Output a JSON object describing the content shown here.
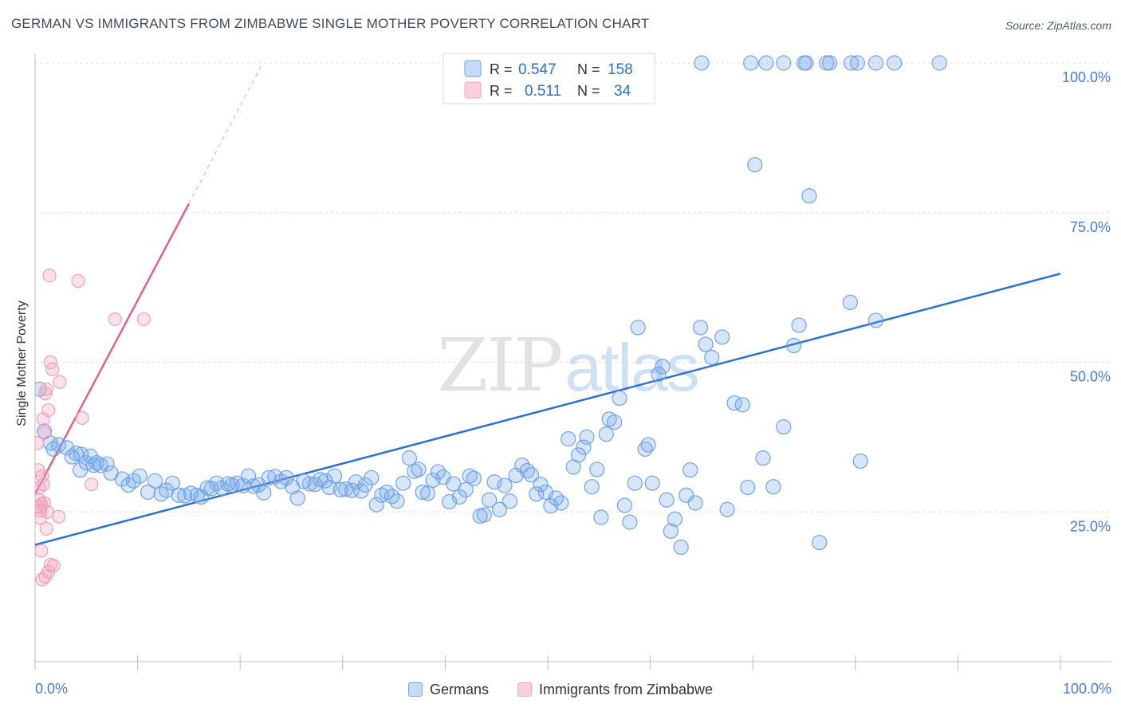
{
  "chart_data": {
    "type": "scatter",
    "title": "GERMAN VS IMMIGRANTS FROM ZIMBABWE SINGLE MOTHER POVERTY CORRELATION CHART",
    "source": "Source: ZipAtlas.com",
    "watermark": "ZIPatlas",
    "ylabel": "Single Mother Poverty",
    "xlabel": "",
    "xlim": [
      0,
      100
    ],
    "ylim": [
      0,
      105
    ],
    "x_tick_labels": [
      "0.0%",
      "100.0%"
    ],
    "y_ticks": [
      25,
      50,
      75,
      100
    ],
    "y_tick_labels": [
      "25.0%",
      "50.0%",
      "75.0%",
      "100.0%"
    ],
    "grid": true,
    "legend": {
      "position": "top-center",
      "rows": [
        {
          "r_label": "R =",
          "r_value": "0.547",
          "n_label": "N =",
          "n_value": "158"
        },
        {
          "r_label": "R =",
          "r_value": "0.511",
          "n_label": "N =",
          "n_value": "34"
        }
      ]
    },
    "series": [
      {
        "name": "Germans",
        "color": "#6fa3e8",
        "line_color": "#2d72d2",
        "trendline": {
          "x": [
            0,
            100
          ],
          "y": [
            19.5,
            64.8
          ]
        },
        "trendline_dashed_extension": false,
        "points": [
          [
            0.4,
            45.5
          ],
          [
            0.9,
            38.5
          ],
          [
            1.5,
            36.5
          ],
          [
            1.8,
            35.5
          ],
          [
            2.3,
            36.2
          ],
          [
            3.1,
            35.7
          ],
          [
            3.6,
            34.2
          ],
          [
            4.0,
            34.8
          ],
          [
            4.5,
            34.6
          ],
          [
            5.0,
            33.2
          ],
          [
            5.4,
            34.3
          ],
          [
            5.7,
            32.8
          ],
          [
            6.0,
            33.2
          ],
          [
            6.4,
            32.8
          ],
          [
            7.0,
            33.0
          ],
          [
            4.4,
            32.0
          ],
          [
            7.4,
            31.5
          ],
          [
            8.5,
            30.5
          ],
          [
            9.1,
            29.5
          ],
          [
            9.6,
            30.2
          ],
          [
            10.2,
            31.0
          ],
          [
            11.0,
            28.3
          ],
          [
            11.7,
            30.2
          ],
          [
            12.3,
            28.0
          ],
          [
            12.8,
            28.6
          ],
          [
            13.4,
            29.8
          ],
          [
            14.0,
            27.8
          ],
          [
            14.6,
            27.7
          ],
          [
            15.2,
            28.1
          ],
          [
            15.8,
            27.8
          ],
          [
            16.2,
            27.5
          ],
          [
            16.8,
            29.0
          ],
          [
            17.2,
            28.9
          ],
          [
            17.7,
            29.8
          ],
          [
            18.2,
            29.0
          ],
          [
            18.8,
            29.7
          ],
          [
            19.2,
            29.5
          ],
          [
            19.7,
            29.8
          ],
          [
            20.3,
            29.4
          ],
          [
            20.8,
            31.0
          ],
          [
            21.3,
            29.3
          ],
          [
            21.8,
            29.5
          ],
          [
            22.3,
            28.2
          ],
          [
            22.8,
            30.7
          ],
          [
            23.4,
            30.9
          ],
          [
            24.0,
            30.1
          ],
          [
            24.5,
            30.7
          ],
          [
            25.1,
            29.2
          ],
          [
            25.6,
            27.3
          ],
          [
            26.2,
            30.1
          ],
          [
            26.8,
            29.7
          ],
          [
            27.3,
            29.6
          ],
          [
            27.8,
            30.4
          ],
          [
            28.3,
            30.2
          ],
          [
            28.7,
            29.1
          ],
          [
            29.2,
            31.0
          ],
          [
            29.8,
            28.7
          ],
          [
            30.3,
            28.8
          ],
          [
            30.9,
            28.6
          ],
          [
            31.3,
            30.0
          ],
          [
            31.8,
            28.5
          ],
          [
            32.2,
            29.5
          ],
          [
            32.8,
            30.7
          ],
          [
            33.3,
            26.2
          ],
          [
            33.8,
            27.8
          ],
          [
            34.3,
            28.3
          ],
          [
            34.8,
            27.6
          ],
          [
            35.3,
            26.8
          ],
          [
            35.9,
            29.8
          ],
          [
            36.5,
            34.0
          ],
          [
            37.0,
            31.8
          ],
          [
            37.4,
            32.1
          ],
          [
            37.8,
            28.3
          ],
          [
            38.3,
            28.1
          ],
          [
            38.8,
            30.3
          ],
          [
            39.3,
            31.7
          ],
          [
            39.8,
            30.8
          ],
          [
            40.4,
            26.7
          ],
          [
            40.8,
            29.7
          ],
          [
            41.4,
            27.5
          ],
          [
            42.0,
            28.7
          ],
          [
            42.4,
            31.0
          ],
          [
            42.8,
            30.6
          ],
          [
            43.4,
            24.3
          ],
          [
            43.8,
            24.5
          ],
          [
            44.3,
            27.0
          ],
          [
            44.8,
            30.0
          ],
          [
            45.3,
            25.4
          ],
          [
            45.8,
            29.4
          ],
          [
            46.3,
            26.8
          ],
          [
            46.9,
            31.1
          ],
          [
            47.5,
            32.8
          ],
          [
            48.0,
            31.9
          ],
          [
            48.4,
            31.2
          ],
          [
            48.9,
            28.0
          ],
          [
            49.3,
            29.6
          ],
          [
            49.8,
            28.3
          ],
          [
            50.3,
            26.0
          ],
          [
            50.8,
            27.3
          ],
          [
            51.3,
            26.5
          ],
          [
            52.0,
            37.2
          ],
          [
            52.5,
            32.5
          ],
          [
            53.0,
            34.5
          ],
          [
            53.5,
            35.8
          ],
          [
            53.8,
            37.5
          ],
          [
            54.3,
            29.2
          ],
          [
            54.8,
            32.1
          ],
          [
            55.2,
            24.1
          ],
          [
            55.7,
            38.0
          ],
          [
            56.0,
            40.5
          ],
          [
            56.5,
            40.0
          ],
          [
            57.0,
            44.0
          ],
          [
            57.5,
            26.1
          ],
          [
            58.0,
            23.3
          ],
          [
            58.5,
            29.8
          ],
          [
            58.8,
            55.8
          ],
          [
            59.5,
            35.5
          ],
          [
            59.8,
            36.2
          ],
          [
            60.2,
            29.8
          ],
          [
            60.8,
            48.0
          ],
          [
            61.2,
            49.3
          ],
          [
            61.6,
            27.0
          ],
          [
            62.0,
            21.8
          ],
          [
            62.4,
            23.8
          ],
          [
            63.0,
            19.1
          ],
          [
            63.5,
            27.8
          ],
          [
            63.9,
            32.0
          ],
          [
            64.4,
            26.5
          ],
          [
            64.9,
            55.8
          ],
          [
            65.4,
            53.0
          ],
          [
            66.0,
            50.8
          ],
          [
            67.0,
            54.2
          ],
          [
            67.5,
            25.4
          ],
          [
            68.2,
            43.2
          ],
          [
            69.0,
            42.9
          ],
          [
            69.5,
            29.1
          ],
          [
            70.2,
            83.0
          ],
          [
            71.0,
            34.0
          ],
          [
            72.0,
            29.2
          ],
          [
            73.0,
            39.2
          ],
          [
            74.0,
            52.8
          ],
          [
            74.5,
            56.2
          ],
          [
            75.5,
            77.8
          ],
          [
            76.5,
            19.9
          ],
          [
            77.5,
            100.0
          ],
          [
            79.5,
            60.0
          ],
          [
            80.5,
            33.5
          ],
          [
            82.0,
            57.0
          ],
          [
            65.0,
            100.0
          ],
          [
            69.8,
            100.0
          ],
          [
            71.3,
            100.0
          ],
          [
            73.0,
            100.0
          ],
          [
            75.0,
            100.0
          ],
          [
            75.2,
            100.0
          ],
          [
            77.2,
            100.0
          ],
          [
            79.6,
            100.0
          ],
          [
            80.2,
            100.0
          ],
          [
            82.0,
            100.0
          ],
          [
            83.8,
            100.0
          ],
          [
            88.2,
            100.0
          ]
        ]
      },
      {
        "name": "Immigrants from Zimbabwe",
        "color": "#f4a3bc",
        "line_color": "#e0608f",
        "trendline": {
          "x": [
            0,
            15
          ],
          "y": [
            28.0,
            76.5
          ]
        },
        "trendline_dashed_extension": {
          "x": [
            15,
            22.2
          ],
          "y": [
            76.5,
            100
          ]
        },
        "points": [
          [
            0.2,
            36.5
          ],
          [
            0.3,
            32.0
          ],
          [
            0.4,
            29.0
          ],
          [
            0.4,
            27.0
          ],
          [
            0.5,
            25.2
          ],
          [
            0.5,
            24.0
          ],
          [
            0.6,
            26.3
          ],
          [
            0.7,
            31.0
          ],
          [
            0.8,
            40.5
          ],
          [
            0.8,
            29.6
          ],
          [
            0.9,
            26.5
          ],
          [
            0.9,
            38.2
          ],
          [
            1.0,
            44.8
          ],
          [
            1.1,
            22.2
          ],
          [
            1.1,
            45.5
          ],
          [
            1.2,
            25.0
          ],
          [
            1.3,
            42.0
          ],
          [
            1.4,
            64.5
          ],
          [
            1.5,
            50.0
          ],
          [
            1.7,
            48.8
          ],
          [
            1.8,
            16.0
          ],
          [
            2.3,
            24.2
          ],
          [
            2.4,
            46.7
          ],
          [
            0.6,
            18.5
          ],
          [
            0.7,
            13.7
          ],
          [
            1.0,
            14.2
          ],
          [
            1.3,
            15.0
          ],
          [
            1.5,
            16.2
          ],
          [
            4.2,
            63.6
          ],
          [
            4.6,
            40.7
          ],
          [
            5.5,
            29.6
          ],
          [
            7.8,
            57.2
          ],
          [
            10.6,
            57.2
          ],
          [
            0.5,
            25.8
          ]
        ]
      }
    ]
  }
}
